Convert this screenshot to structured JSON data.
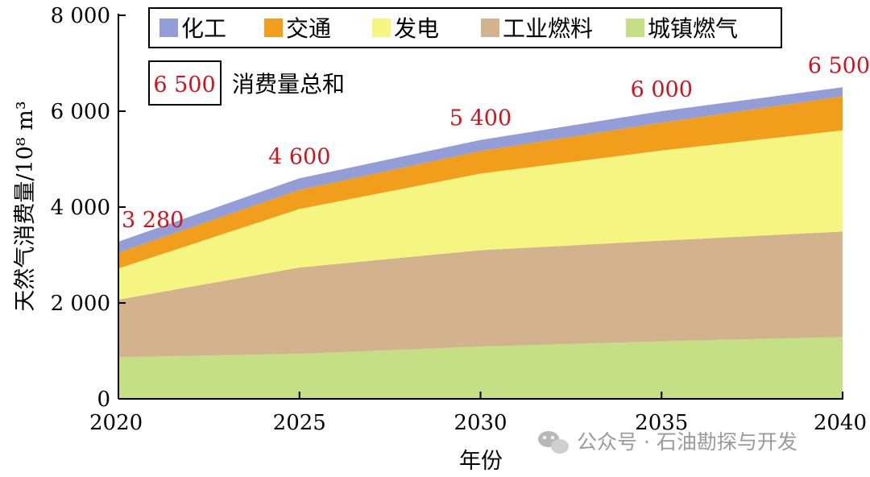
{
  "chart_data": {
    "type": "area",
    "stacked": true,
    "x": [
      2020,
      2025,
      2030,
      2035,
      2040
    ],
    "xlim": [
      2020,
      2040
    ],
    "ylim": [
      0,
      8000
    ],
    "y_ticks": [
      0,
      2000,
      4000,
      6000,
      8000
    ],
    "y_tick_labels": [
      "0",
      "2 000",
      "4 000",
      "6 000",
      "8 000"
    ],
    "x_tick_labels": [
      "2020",
      "2025",
      "2030",
      "2035",
      "2040"
    ],
    "xlabel": "年份",
    "ylabel": "天然气消费量/10⁸ m³",
    "grid": false,
    "legend_position": "top",
    "series": [
      {
        "name": "城镇燃气",
        "color": "#c5df84",
        "values": [
          870,
          940,
          1090,
          1200,
          1290
        ]
      },
      {
        "name": "工业燃料",
        "color": "#d2b38e",
        "values": [
          1200,
          1800,
          2010,
          2100,
          2200
        ]
      },
      {
        "name": "发电",
        "color": "#f5f582",
        "values": [
          650,
          1220,
          1600,
          1880,
          2110
        ]
      },
      {
        "name": "交通",
        "color": "#f29e1d",
        "values": [
          330,
          400,
          470,
          580,
          710
        ]
      },
      {
        "name": "化工",
        "color": "#939ed8",
        "values": [
          230,
          240,
          230,
          240,
          190
        ]
      }
    ],
    "legend_order": [
      "化工",
      "交通",
      "发电",
      "工业燃料",
      "城镇燃气"
    ],
    "totals": {
      "values": [
        3280,
        4600,
        5400,
        6000,
        6500
      ],
      "labels": [
        "3 280",
        "4 600",
        "5 400",
        "6 000",
        "6 500"
      ]
    },
    "totals_legend": {
      "sample": "6 500",
      "label": "消费量总和"
    }
  },
  "watermark": {
    "text": "公众号 · 石油勘探与开发",
    "icon": "wechat-icon"
  }
}
